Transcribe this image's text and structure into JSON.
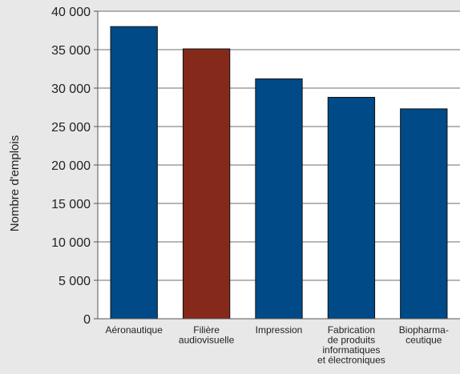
{
  "chart_data": {
    "type": "bar",
    "title": "",
    "xlabel": "",
    "ylabel": "Nombre d'emplois",
    "ylim": [
      0,
      40000
    ],
    "ytick_values": [
      0,
      5000,
      10000,
      15000,
      20000,
      25000,
      30000,
      35000,
      40000
    ],
    "ytick_labels": [
      "0",
      "5 000",
      "10 000",
      "15 000",
      "20 000",
      "25 000",
      "30 000",
      "35 000",
      "40 000"
    ],
    "categories": [
      "Aéronautique",
      "Filière audiovisuelle",
      "Impression",
      "Fabrication de produits informatiques et électroniques",
      "Biopharma- ceutique"
    ],
    "category_label_lines": [
      [
        "Aéronautique"
      ],
      [
        "Filière",
        "audiovisuelle"
      ],
      [
        "Impression"
      ],
      [
        "Fabrication",
        "de produits",
        "informatiques",
        "et électroniques"
      ],
      [
        "Biopharma-",
        "ceutique"
      ]
    ],
    "values": [
      38000,
      35100,
      31200,
      28800,
      27300
    ],
    "bar_colors": [
      "#004a87",
      "#85291b",
      "#004a87",
      "#004a87",
      "#004a87"
    ],
    "grid": true,
    "legend": "none",
    "background_color": "#e8e8e8",
    "plot_background_color": "#ffffff"
  }
}
